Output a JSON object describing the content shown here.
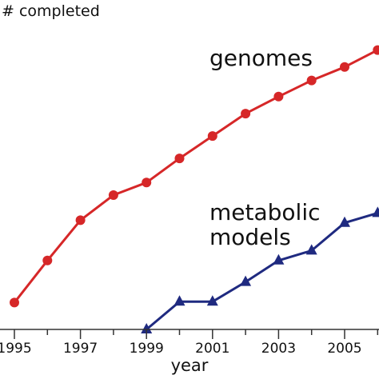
{
  "chart_data": {
    "type": "line",
    "ylabel": "# completed",
    "xlabel": "year",
    "x_tick_labels": [
      "1995",
      "1997",
      "1999",
      "2001",
      "2003",
      "2005"
    ],
    "x_minor_ticks": [
      1996,
      1998,
      2000,
      2002,
      2004,
      2006
    ],
    "xlim": [
      1994.6,
      2006
    ],
    "grid": false,
    "series": [
      {
        "name": "genomes",
        "color": "#d62728",
        "marker": "circle",
        "x": [
          1995,
          1996,
          1997,
          1998,
          1999,
          2000,
          2001,
          2002,
          2003,
          2004,
          2005,
          2006
        ],
        "y": [
          0.3,
          0.77,
          1.22,
          1.5,
          1.64,
          1.91,
          2.16,
          2.41,
          2.6,
          2.78,
          2.93,
          3.12
        ]
      },
      {
        "name": "metabolic models",
        "name_lines": [
          "metabolic",
          "models"
        ],
        "color": "#1f2a80",
        "marker": "triangle",
        "x": [
          1999,
          2000,
          2001,
          2002,
          2003,
          2004,
          2005,
          2006
        ],
        "y": [
          0.0,
          0.31,
          0.31,
          0.53,
          0.77,
          0.88,
          1.19,
          1.3
        ]
      }
    ]
  }
}
